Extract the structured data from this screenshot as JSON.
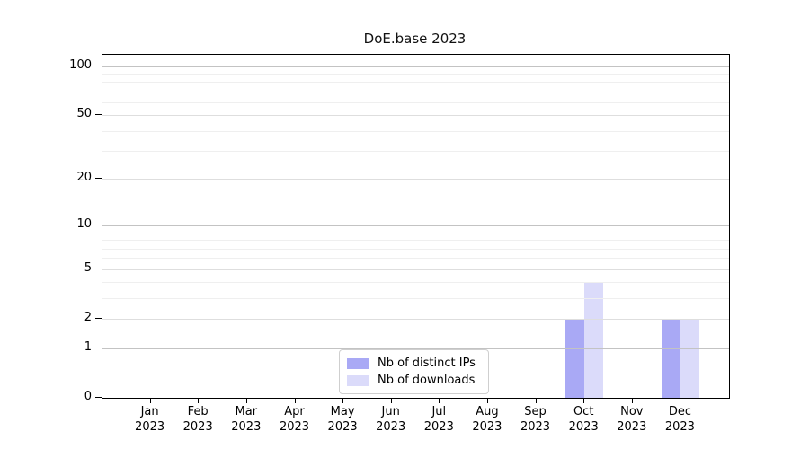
{
  "chart_data": {
    "type": "bar",
    "title": "DoE.base 2023",
    "categories": [
      "Jan",
      "Feb",
      "Mar",
      "Apr",
      "May",
      "Jun",
      "Jul",
      "Aug",
      "Sep",
      "Oct",
      "Nov",
      "Dec"
    ],
    "category_sublabel": "2023",
    "series": [
      {
        "name": "Nb of distinct IPs",
        "color": "#a9a9f5",
        "values": [
          0,
          0,
          0,
          0,
          0,
          0,
          0,
          0,
          0,
          2,
          0,
          2
        ]
      },
      {
        "name": "Nb of downloads",
        "color": "#dbdbfa",
        "values": [
          0,
          0,
          0,
          0,
          0,
          0,
          0,
          0,
          0,
          4,
          0,
          2
        ]
      }
    ],
    "yscale": "log1p",
    "ylim": [
      0,
      117
    ],
    "yticks": [
      0,
      1,
      2,
      5,
      10,
      20,
      50,
      100
    ],
    "grid": {
      "decade": [
        1,
        10,
        100
      ],
      "sub": [
        2,
        5,
        20,
        50
      ],
      "minor": [
        3,
        4,
        6,
        7,
        8,
        9,
        30,
        40,
        60,
        70,
        80,
        90
      ]
    },
    "legend_position": "lower center",
    "colors": {
      "background": "#ffffff",
      "axis": "#000000",
      "grid_decade": "#c3c3c3",
      "grid_sub": "#dedede",
      "grid_minor": "#efefef"
    }
  }
}
